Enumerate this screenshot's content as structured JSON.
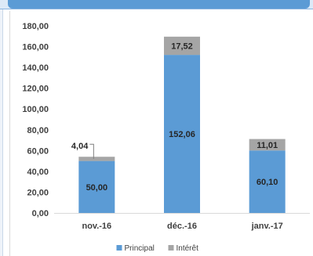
{
  "chart_data": {
    "type": "bar",
    "stacked": true,
    "categories": [
      "nov.-16",
      "déc.-16",
      "janv.-17"
    ],
    "series": [
      {
        "name": "Principal",
        "values": [
          50.0,
          152.06,
          60.1
        ],
        "labels": [
          "50,00",
          "152,06",
          "60,10"
        ],
        "color": "#5b9bd5"
      },
      {
        "name": "Intérêt",
        "values": [
          4.04,
          17.52,
          11.01
        ],
        "labels": [
          "4,04",
          "17,52",
          "11,01"
        ],
        "color": "#a5a5a5"
      }
    ],
    "ylim": [
      0,
      180
    ],
    "yticks": [
      0,
      20,
      40,
      60,
      80,
      100,
      120,
      140,
      160,
      180
    ],
    "ytick_labels": [
      "0,00",
      "20,00",
      "40,00",
      "60,00",
      "80,00",
      "100,00",
      "120,00",
      "140,00",
      "160,00",
      "180,00"
    ],
    "grid": false,
    "legend_position": "bottom"
  }
}
